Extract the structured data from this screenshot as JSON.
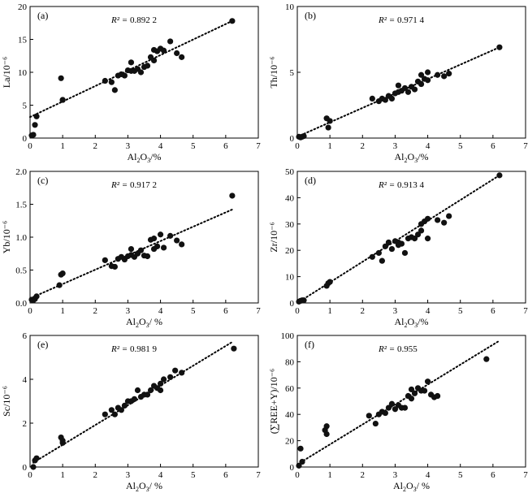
{
  "chart_data": [
    {
      "type": "scatter",
      "panel_label": "(a)",
      "r2_symbol": "R² = ",
      "r2_value": "0.892 2",
      "xlabel_main": "Al",
      "xlabel_sub": "2",
      "xlabel_mid": "O",
      "xlabel_sub2": "3",
      "xlabel_tail": "/%",
      "ylabel": "La/10⁻⁶",
      "xlim": [
        0,
        7
      ],
      "ylim": [
        0,
        20
      ],
      "xticks": [
        0,
        1,
        2,
        3,
        4,
        5,
        6,
        7
      ],
      "yticks": [
        0,
        5,
        10,
        15,
        20
      ],
      "x": [
        0.05,
        0.1,
        0.15,
        0.2,
        0.95,
        1.0,
        1.0,
        2.3,
        2.5,
        2.6,
        2.7,
        2.8,
        2.9,
        3.0,
        3.1,
        3.1,
        3.2,
        3.3,
        3.4,
        3.5,
        3.6,
        3.7,
        3.8,
        3.8,
        3.9,
        4.0,
        4.1,
        4.3,
        4.5,
        4.65,
        6.2
      ],
      "y": [
        0.4,
        0.5,
        2.0,
        3.3,
        9.1,
        5.8,
        5.8,
        8.7,
        8.5,
        7.3,
        9.5,
        9.7,
        9.5,
        10.3,
        11.5,
        10.2,
        10.2,
        10.5,
        10.0,
        10.8,
        11.0,
        12.3,
        11.8,
        13.4,
        13.2,
        13.6,
        13.3,
        14.7,
        12.9,
        12.3,
        17.8
      ],
      "trend": [
        [
          0,
          3.2
        ],
        [
          6.2,
          17.8
        ]
      ]
    },
    {
      "type": "scatter",
      "panel_label": "(b)",
      "r2_symbol": "R² = ",
      "r2_value": "0.971 4",
      "xlabel_main": "Al",
      "xlabel_sub": "2",
      "xlabel_mid": "O",
      "xlabel_sub2": "3",
      "xlabel_tail": "/%",
      "ylabel": "Th/10⁻⁶",
      "xlim": [
        0,
        7
      ],
      "ylim": [
        0,
        10
      ],
      "xticks": [
        0,
        1,
        2,
        3,
        4,
        5,
        6,
        7
      ],
      "yticks": [
        0,
        5,
        10
      ],
      "x": [
        0.05,
        0.1,
        0.15,
        0.2,
        0.9,
        0.95,
        1.0,
        2.3,
        2.5,
        2.6,
        2.7,
        2.8,
        2.9,
        3.0,
        3.1,
        3.1,
        3.2,
        3.3,
        3.4,
        3.5,
        3.6,
        3.7,
        3.8,
        3.8,
        3.9,
        4.0,
        4.0,
        4.3,
        4.5,
        4.65,
        6.2
      ],
      "y": [
        0.1,
        0.05,
        0.1,
        0.15,
        1.5,
        0.8,
        1.3,
        3.0,
        2.8,
        3.0,
        2.9,
        3.2,
        3.0,
        3.4,
        4.0,
        3.5,
        3.6,
        3.8,
        3.5,
        3.9,
        3.7,
        4.3,
        4.1,
        4.8,
        4.5,
        4.4,
        5.0,
        4.8,
        4.7,
        4.9,
        6.9
      ],
      "trend": [
        [
          0,
          0.1
        ],
        [
          6.2,
          6.9
        ]
      ]
    },
    {
      "type": "scatter",
      "panel_label": "(c)",
      "r2_symbol": "R² = ",
      "r2_value": "0.917 2",
      "xlabel_main": "Al",
      "xlabel_sub": "2",
      "xlabel_mid": "O",
      "xlabel_sub2": "3",
      "xlabel_tail": "/ %",
      "ylabel": "Yb/10⁻⁶",
      "xlim": [
        0,
        7
      ],
      "ylim": [
        0,
        2.0
      ],
      "xticks": [
        0,
        1,
        2,
        3,
        4,
        5,
        6,
        7
      ],
      "yticks": [
        0,
        0.5,
        1.0,
        1.5,
        2.0
      ],
      "ytick_labels": [
        "0.0",
        "0.5",
        "1.0",
        "1.5",
        "2.0"
      ],
      "x": [
        0.05,
        0.1,
        0.15,
        0.2,
        0.9,
        0.95,
        1.0,
        2.3,
        2.5,
        2.6,
        2.7,
        2.8,
        2.9,
        3.0,
        3.1,
        3.1,
        3.2,
        3.3,
        3.4,
        3.5,
        3.6,
        3.7,
        3.8,
        3.8,
        3.9,
        4.0,
        4.1,
        4.3,
        4.5,
        4.65,
        6.2
      ],
      "y": [
        0.05,
        0.04,
        0.06,
        0.1,
        0.27,
        0.43,
        0.45,
        0.65,
        0.56,
        0.55,
        0.67,
        0.7,
        0.66,
        0.71,
        0.82,
        0.73,
        0.7,
        0.75,
        0.8,
        0.72,
        0.71,
        0.96,
        0.82,
        0.98,
        0.86,
        1.04,
        0.84,
        1.02,
        0.95,
        0.89,
        1.63
      ],
      "trend": [
        [
          0,
          0.07
        ],
        [
          6.2,
          1.42
        ]
      ]
    },
    {
      "type": "scatter",
      "panel_label": "(d)",
      "r2_symbol": "R² = ",
      "r2_value": "0.913 4",
      "xlabel_main": "Al",
      "xlabel_sub": "2",
      "xlabel_mid": "O",
      "xlabel_sub2": "3",
      "xlabel_tail": "/%",
      "ylabel": "Zr/10⁻⁶",
      "xlim": [
        0,
        7
      ],
      "ylim": [
        0,
        50
      ],
      "xticks": [
        0,
        1,
        2,
        3,
        4,
        5,
        6,
        7
      ],
      "yticks": [
        0,
        10,
        20,
        30,
        40,
        50
      ],
      "x": [
        0.05,
        0.1,
        0.15,
        0.2,
        0.9,
        0.95,
        1.0,
        2.3,
        2.5,
        2.6,
        2.7,
        2.8,
        2.9,
        3.0,
        3.1,
        3.1,
        3.2,
        3.3,
        3.4,
        3.5,
        3.6,
        3.7,
        3.8,
        3.8,
        3.9,
        4.0,
        4.0,
        4.3,
        4.5,
        4.65,
        6.2
      ],
      "y": [
        0.5,
        0.8,
        1.0,
        1.0,
        6.5,
        7.5,
        8.0,
        17.5,
        19.0,
        16.0,
        21.5,
        23.0,
        20.5,
        23.5,
        23.0,
        22.0,
        22.5,
        19.0,
        24.5,
        25.0,
        24.5,
        26.0,
        27.5,
        30.0,
        31.0,
        24.5,
        32.0,
        31.5,
        30.5,
        33.0,
        48.5
      ],
      "trend": [
        [
          0,
          0
        ],
        [
          6.2,
          48.5
        ]
      ]
    },
    {
      "type": "scatter",
      "panel_label": "(e)",
      "r2_symbol": "R² = ",
      "r2_value": "0.981 9",
      "xlabel_main": "Al",
      "xlabel_sub": "2",
      "xlabel_mid": "O",
      "xlabel_sub2": "3",
      "xlabel_tail": "/ %",
      "ylabel": "Sc/10⁻⁶",
      "xlim": [
        0,
        7
      ],
      "ylim": [
        0,
        6
      ],
      "xticks": [
        0,
        1,
        2,
        3,
        4,
        5,
        6,
        7
      ],
      "yticks": [
        0,
        2,
        4,
        6
      ],
      "x": [
        0.1,
        0.15,
        0.2,
        0.95,
        1.0,
        1.0,
        2.3,
        2.5,
        2.6,
        2.7,
        2.8,
        2.9,
        3.0,
        3.1,
        3.2,
        3.3,
        3.4,
        3.5,
        3.6,
        3.7,
        3.8,
        3.9,
        4.0,
        4.0,
        4.1,
        4.3,
        4.45,
        4.65,
        6.25
      ],
      "y": [
        0.0,
        0.3,
        0.4,
        1.35,
        1.1,
        1.2,
        2.4,
        2.6,
        2.4,
        2.7,
        2.6,
        2.8,
        3.0,
        3.0,
        3.1,
        3.5,
        3.2,
        3.3,
        3.3,
        3.5,
        3.7,
        3.6,
        3.8,
        3.5,
        4.0,
        4.1,
        4.4,
        4.3,
        5.4
      ],
      "trend": [
        [
          0.1,
          0.2
        ],
        [
          6.2,
          5.7
        ]
      ]
    },
    {
      "type": "scatter",
      "panel_label": "(f)",
      "r2_symbol": "R² = ",
      "r2_value": "0.955",
      "xlabel_main": "Al",
      "xlabel_sub": "2",
      "xlabel_mid": "O",
      "xlabel_sub2": "3",
      "xlabel_tail": "/ %",
      "ylabel": "(∑REE+Y)/10⁻⁶",
      "xlim": [
        0,
        7
      ],
      "ylim": [
        0,
        100
      ],
      "xticks": [
        0,
        1,
        2,
        3,
        4,
        5,
        6,
        7
      ],
      "yticks": [
        0,
        20,
        40,
        60,
        80,
        100
      ],
      "x": [
        0.05,
        0.1,
        0.15,
        0.85,
        0.9,
        0.9,
        2.2,
        2.4,
        2.5,
        2.6,
        2.7,
        2.8,
        2.9,
        3.0,
        3.1,
        3.2,
        3.3,
        3.4,
        3.5,
        3.5,
        3.6,
        3.7,
        3.8,
        3.9,
        4.0,
        4.1,
        4.2,
        4.3,
        5.8
      ],
      "y": [
        1.0,
        14.0,
        4.0,
        28.0,
        31.0,
        25.0,
        39.0,
        33.0,
        40.0,
        42.0,
        41.0,
        45.0,
        48.0,
        44.0,
        47.0,
        45.0,
        45.0,
        54.0,
        52.0,
        59.0,
        56.0,
        60.0,
        58.0,
        58.0,
        65.0,
        55.0,
        53.0,
        54.0,
        82.0
      ],
      "trend": [
        [
          0,
          2
        ],
        [
          6.2,
          96
        ]
      ]
    }
  ]
}
